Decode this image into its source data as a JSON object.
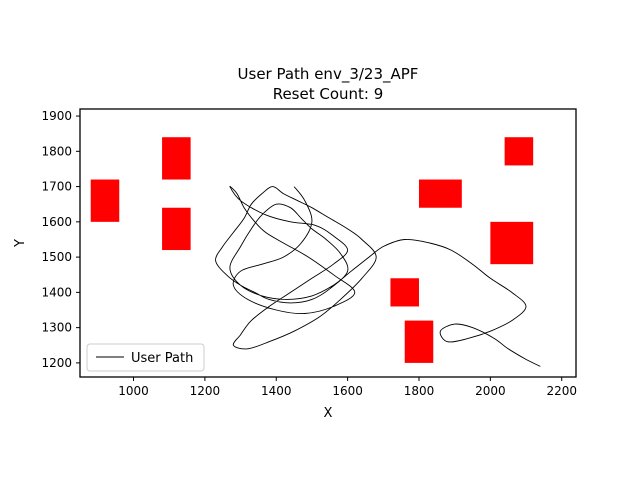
{
  "chart_data": {
    "type": "line",
    "title": "User Path env_3/23_APF",
    "subtitle": "Reset Count: 9",
    "xlabel": "X",
    "ylabel": "Y",
    "xlim": [
      850,
      2240
    ],
    "ylim": [
      1160,
      1920
    ],
    "xticks": [
      1000,
      1200,
      1400,
      1600,
      1800,
      2000,
      2200
    ],
    "yticks": [
      1200,
      1300,
      1400,
      1500,
      1600,
      1700,
      1800,
      1900
    ],
    "grid": false,
    "legend": {
      "position": "lower-left",
      "entries": [
        "User Path"
      ]
    },
    "colors": {
      "path": "#000000",
      "obstacle": "#ff0000"
    },
    "obstacles": [
      {
        "x": [
          880,
          960
        ],
        "y": [
          1600,
          1720
        ]
      },
      {
        "x": [
          1080,
          1160
        ],
        "y": [
          1720,
          1840
        ]
      },
      {
        "x": [
          1080,
          1160
        ],
        "y": [
          1520,
          1640
        ]
      },
      {
        "x": [
          2040,
          2120
        ],
        "y": [
          1760,
          1840
        ]
      },
      {
        "x": [
          1800,
          1920
        ],
        "y": [
          1640,
          1720
        ]
      },
      {
        "x": [
          2000,
          2120
        ],
        "y": [
          1480,
          1600
        ]
      },
      {
        "x": [
          1720,
          1800
        ],
        "y": [
          1360,
          1440
        ]
      },
      {
        "x": [
          1760,
          1840
        ],
        "y": [
          1200,
          1320
        ]
      }
    ],
    "series": [
      {
        "name": "User Path",
        "x": [
          1450,
          1480,
          1500,
          1470,
          1420,
          1360,
          1300,
          1280,
          1320,
          1400,
          1480,
          1560,
          1620,
          1560,
          1490,
          1420,
          1370,
          1340,
          1310,
          1290,
          1270,
          1300,
          1370,
          1440,
          1510,
          1560,
          1600,
          1560,
          1500,
          1440,
          1380,
          1330,
          1300,
          1280,
          1320,
          1380,
          1450,
          1520,
          1580,
          1640,
          1680,
          1640,
          1600,
          1550,
          1500,
          1460,
          1420,
          1390,
          1360,
          1330,
          1310,
          1280,
          1250,
          1230,
          1260,
          1300,
          1340,
          1380,
          1440,
          1500,
          1550,
          1600,
          1580,
          1540,
          1500,
          1470,
          1440,
          1400,
          1360,
          1330,
          1300,
          1270,
          1300,
          1360,
          1430,
          1500,
          1560,
          1610,
          1660,
          1700,
          1760,
          1830,
          1890,
          1950,
          2000,
          2060,
          2100,
          2060,
          2000,
          1940,
          1880,
          1860,
          1900,
          1950,
          2010,
          2050,
          2100,
          2140
        ],
        "y": [
          1700,
          1660,
          1600,
          1540,
          1500,
          1480,
          1460,
          1420,
          1380,
          1350,
          1340,
          1360,
          1400,
          1450,
          1500,
          1540,
          1570,
          1600,
          1640,
          1680,
          1700,
          1660,
          1620,
          1600,
          1590,
          1560,
          1520,
          1480,
          1440,
          1400,
          1360,
          1320,
          1280,
          1250,
          1240,
          1260,
          1290,
          1330,
          1380,
          1440,
          1500,
          1550,
          1580,
          1610,
          1640,
          1660,
          1680,
          1700,
          1680,
          1650,
          1610,
          1570,
          1530,
          1490,
          1450,
          1420,
          1400,
          1380,
          1370,
          1380,
          1410,
          1460,
          1510,
          1550,
          1580,
          1610,
          1640,
          1650,
          1620,
          1580,
          1530,
          1470,
          1420,
          1390,
          1380,
          1390,
          1420,
          1460,
          1500,
          1530,
          1550,
          1540,
          1520,
          1480,
          1440,
          1400,
          1360,
          1320,
          1290,
          1270,
          1260,
          1290,
          1310,
          1300,
          1270,
          1240,
          1210,
          1190
        ]
      }
    ]
  }
}
